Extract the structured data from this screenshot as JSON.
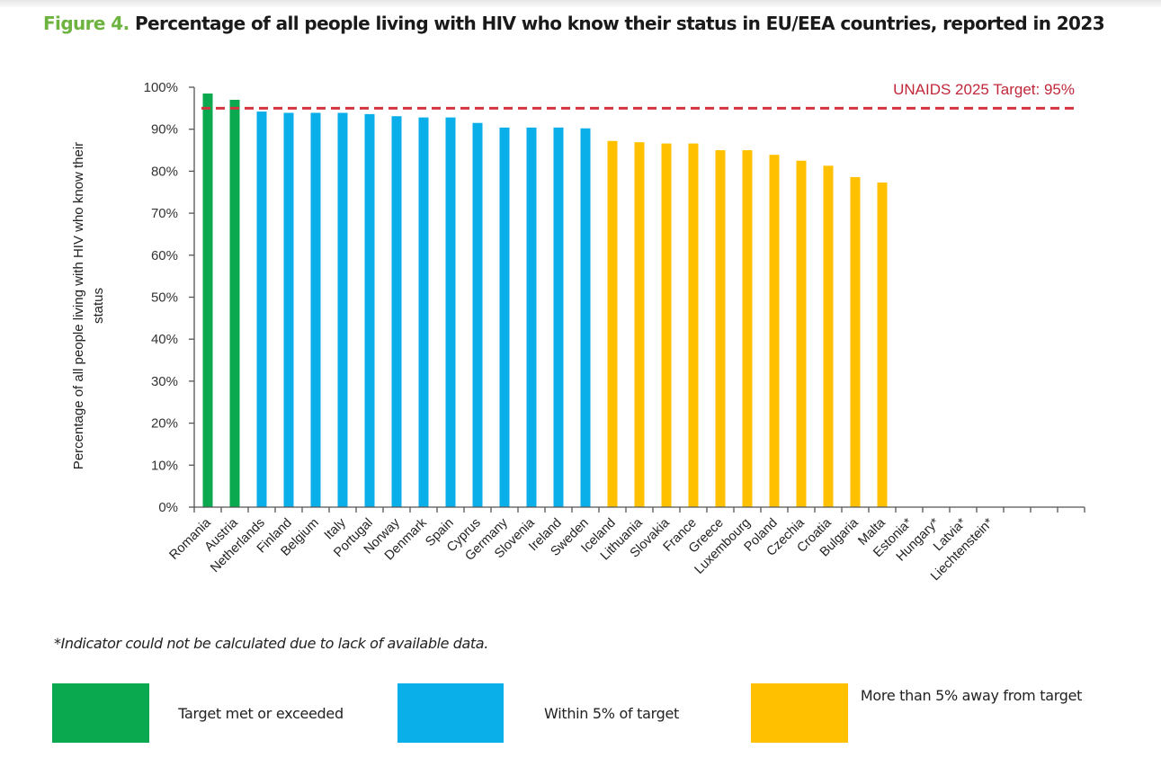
{
  "title": {
    "figure_label": "Figure 4.",
    "text": " Percentage of all people living with HIV who know their status in EU/EEA countries, reported in 2023"
  },
  "footnote": "*Indicator could not be calculated due to lack of available data.",
  "colors": {
    "met": "#0aa84f",
    "within": "#0aaee8",
    "away": "#ffc000",
    "target_line": "#d3343f"
  },
  "legend": [
    {
      "key": "met",
      "label": "Target met or exceeded"
    },
    {
      "key": "within",
      "label": "Within 5% of target"
    },
    {
      "key": "away",
      "label": "More than 5% away from target"
    }
  ],
  "chart_data": {
    "type": "bar",
    "title": "Percentage of all people living with HIV who know their status in EU/EEA countries, reported in 2023",
    "xlabel": "",
    "ylabel": "Percentage of all people living with HIV who know their status",
    "ylim": [
      0,
      100
    ],
    "yticks": [
      "0%",
      "10%",
      "20%",
      "30%",
      "40%",
      "50%",
      "60%",
      "70%",
      "80%",
      "90%",
      "100%"
    ],
    "grid": false,
    "legend_position": "bottom",
    "target": {
      "value": 95,
      "label": "UNAIDS 2025 Target: 95%"
    },
    "categories": [
      "Romania",
      "Austria",
      "Netherlands",
      "Finland",
      "Belgium",
      "Italy",
      "Portugal",
      "Norway",
      "Denmark",
      "Spain",
      "Cyprus",
      "Germany",
      "Slovenia",
      "Ireland",
      "Sweden",
      "Iceland",
      "Lithuania",
      "Slovakia",
      "France",
      "Greece",
      "Luxembourg",
      "Poland",
      "Czechia",
      "Croatia",
      "Bulgaria",
      "Malta",
      "Estonia*",
      "Hungary*",
      "Latvia*",
      "Liechtenstein*"
    ],
    "values": [
      98.5,
      97.0,
      94.2,
      93.9,
      93.9,
      93.9,
      93.6,
      93.1,
      92.8,
      92.8,
      91.5,
      90.4,
      90.4,
      90.4,
      90.2,
      87.2,
      86.9,
      86.6,
      86.6,
      85.0,
      85.0,
      83.9,
      82.5,
      81.3,
      78.6,
      77.3,
      null,
      null,
      null,
      null
    ],
    "status": [
      "met",
      "met",
      "within",
      "within",
      "within",
      "within",
      "within",
      "within",
      "within",
      "within",
      "within",
      "within",
      "within",
      "within",
      "within",
      "away",
      "away",
      "away",
      "away",
      "away",
      "away",
      "away",
      "away",
      "away",
      "away",
      "away",
      null,
      null,
      null,
      null
    ]
  }
}
